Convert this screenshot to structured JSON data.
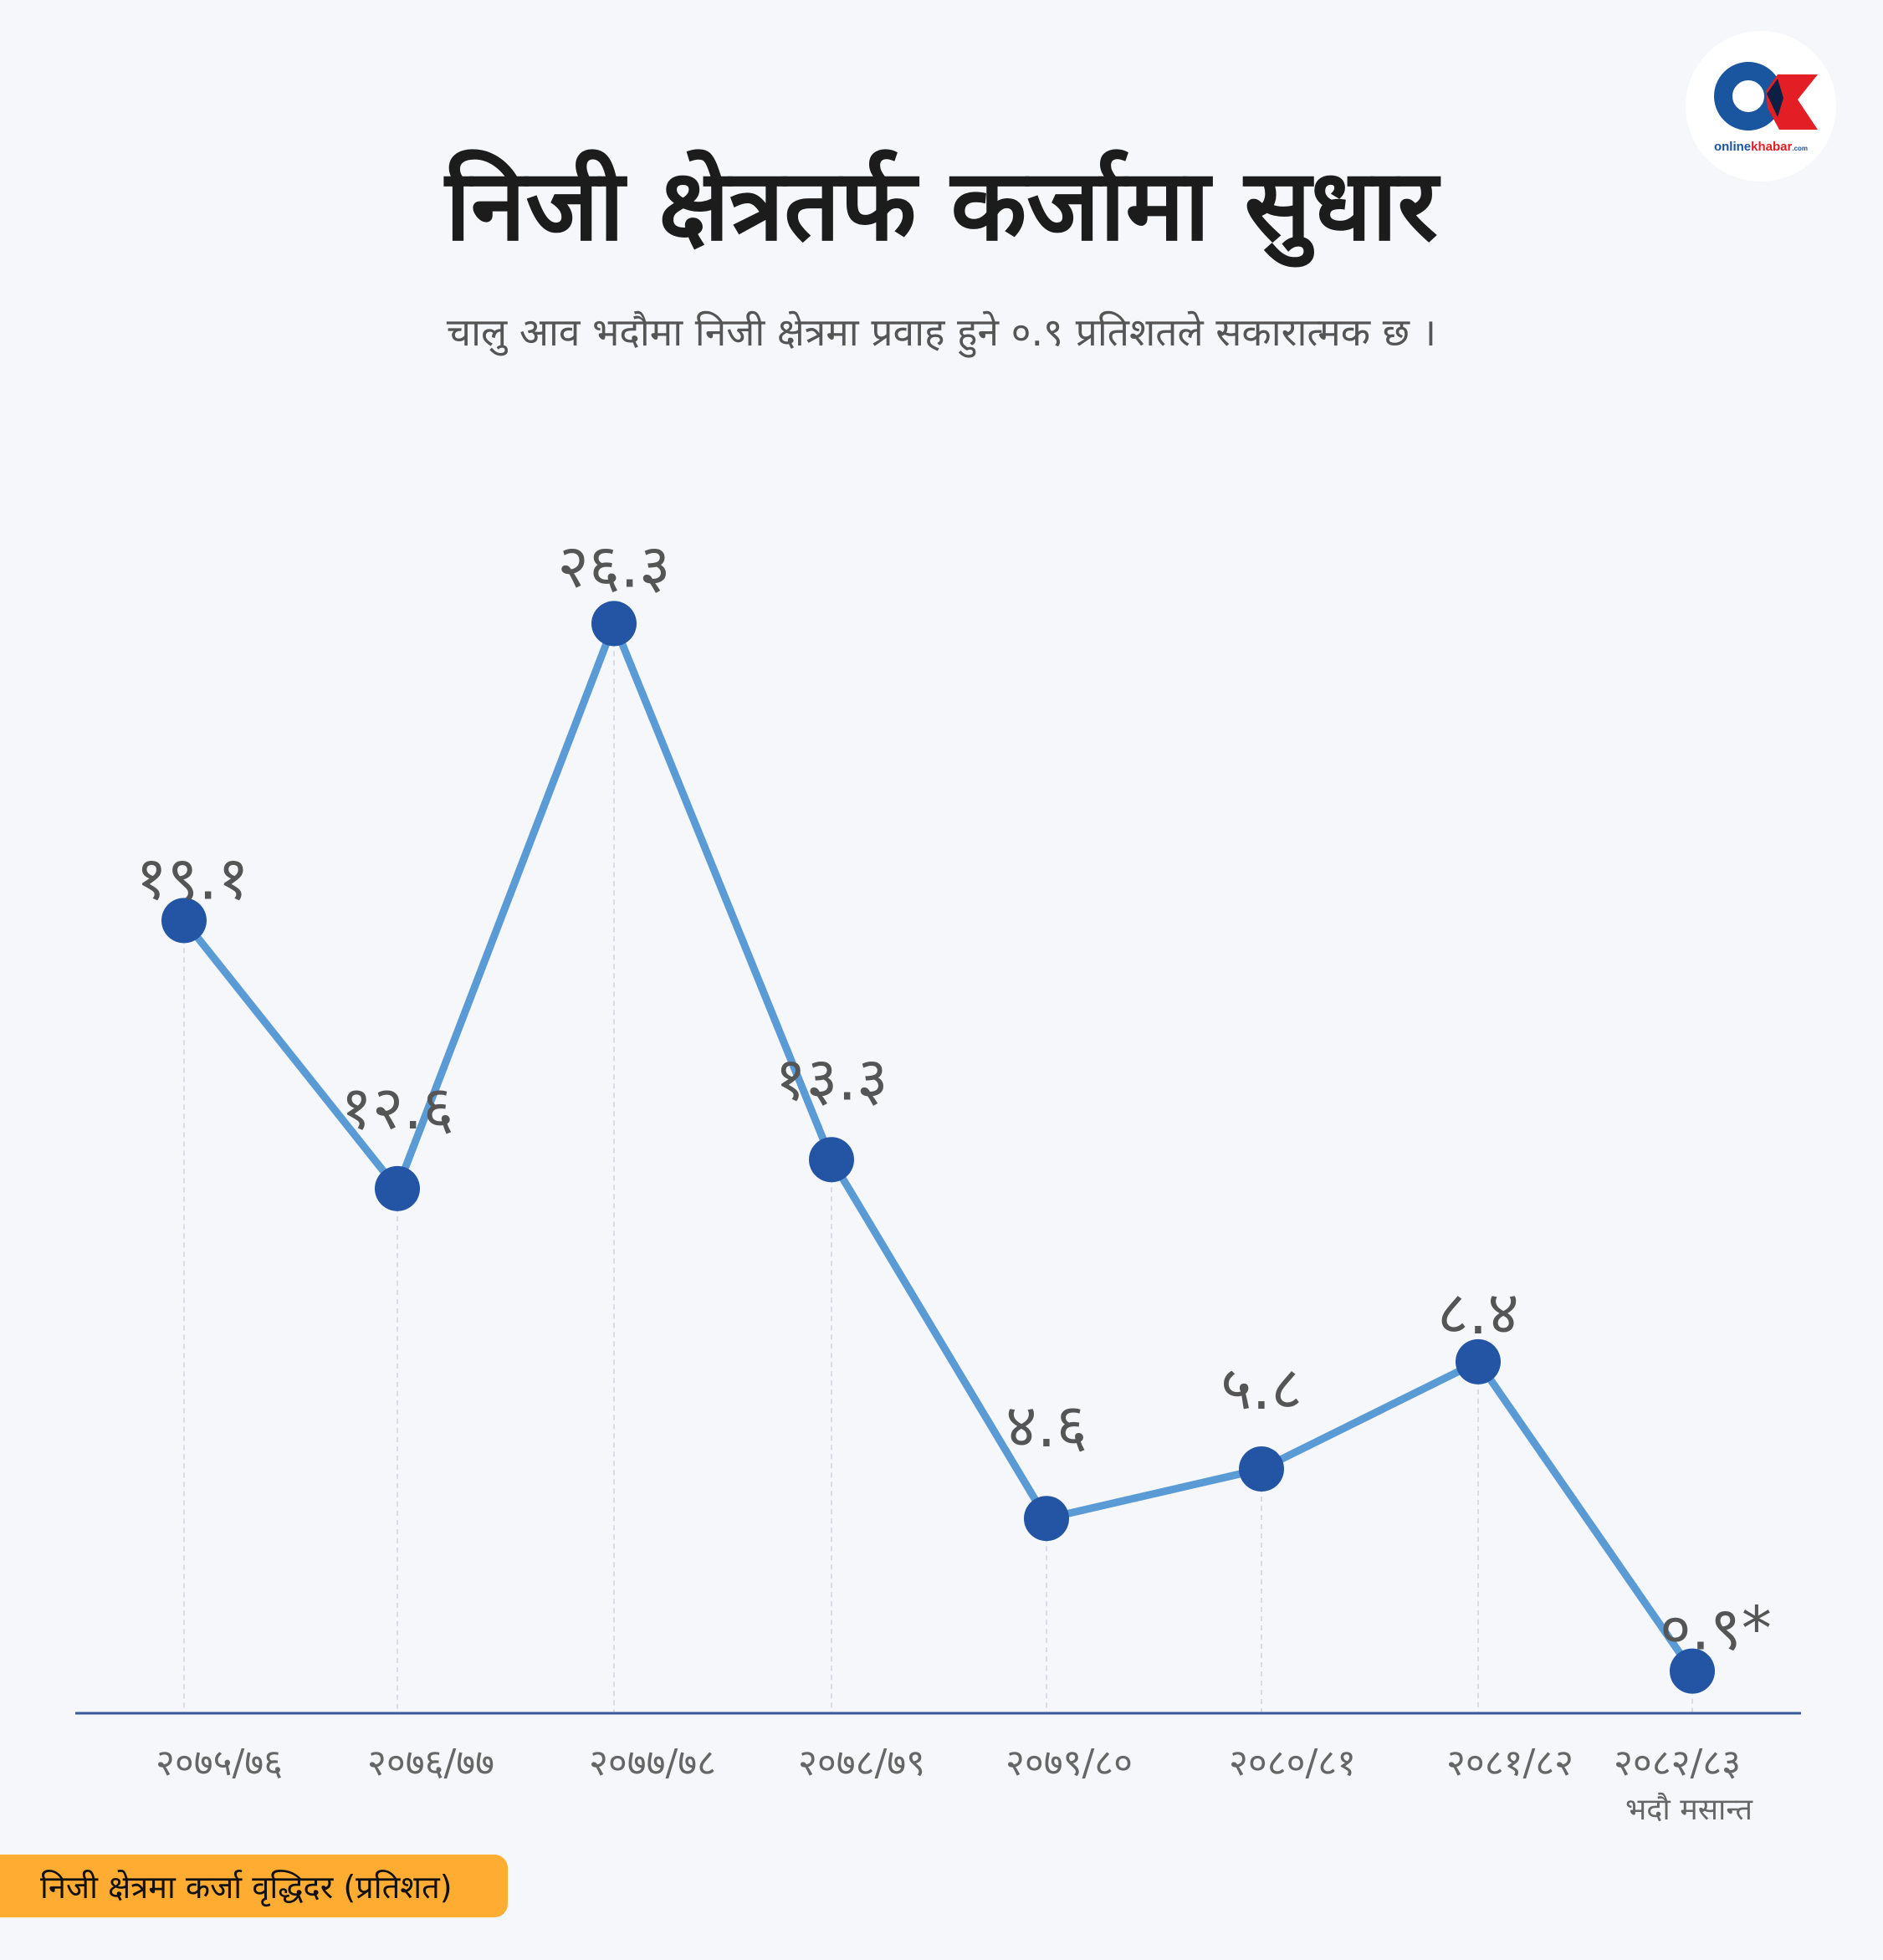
{
  "title": "निजी क्षेत्रतर्फ कर्जामा सुधार",
  "subtitle": "चालु आव भदौमा निजी क्षेत्रमा प्रवाह हुने ०.९ प्रतिशतले सकारात्मक छ ।",
  "logo": {
    "text": "onlinekhabar.com",
    "colors": {
      "blue": "#1a55a0",
      "red": "#e31e24",
      "dark": "#0d1f45"
    }
  },
  "legend": {
    "label": "निजी क्षेत्रमा कर्जा वृद्धिदर  (प्रतिशत)",
    "color": "#ffac33"
  },
  "chart_data": {
    "type": "line",
    "title": "निजी क्षेत्रतर्फ कर्जामा सुधार",
    "ylabel": "निजी क्षेत्रमा कर्जा वृद्धिदर (प्रतिशत)",
    "categories": [
      "२०७५/७६",
      "२०७६/७७",
      "२०७७/७८",
      "२०७८/७९",
      "२०७९/८०",
      "२०८०/८१",
      "२०८१/८२",
      "२०८२/८३"
    ],
    "category_note": {
      "index": 7,
      "text": "भदौ मसान्त"
    },
    "series": [
      {
        "name": "निजी क्षेत्रमा कर्जा वृद्धिदर",
        "values": [
          19.1,
          12.6,
          26.3,
          13.3,
          4.6,
          5.8,
          8.4,
          0.9
        ],
        "labels": [
          "१९.१",
          "१२.६",
          "२६.३",
          "१३.३",
          "४.६",
          "५.८",
          "८.४",
          "०.९*"
        ]
      }
    ],
    "ylim": [
      0,
      28
    ],
    "grid": false,
    "colors": {
      "line": "#5b9bd5",
      "marker": "#2455a4",
      "axis": "#3a5a9a",
      "guide": "#d8dce6"
    }
  }
}
